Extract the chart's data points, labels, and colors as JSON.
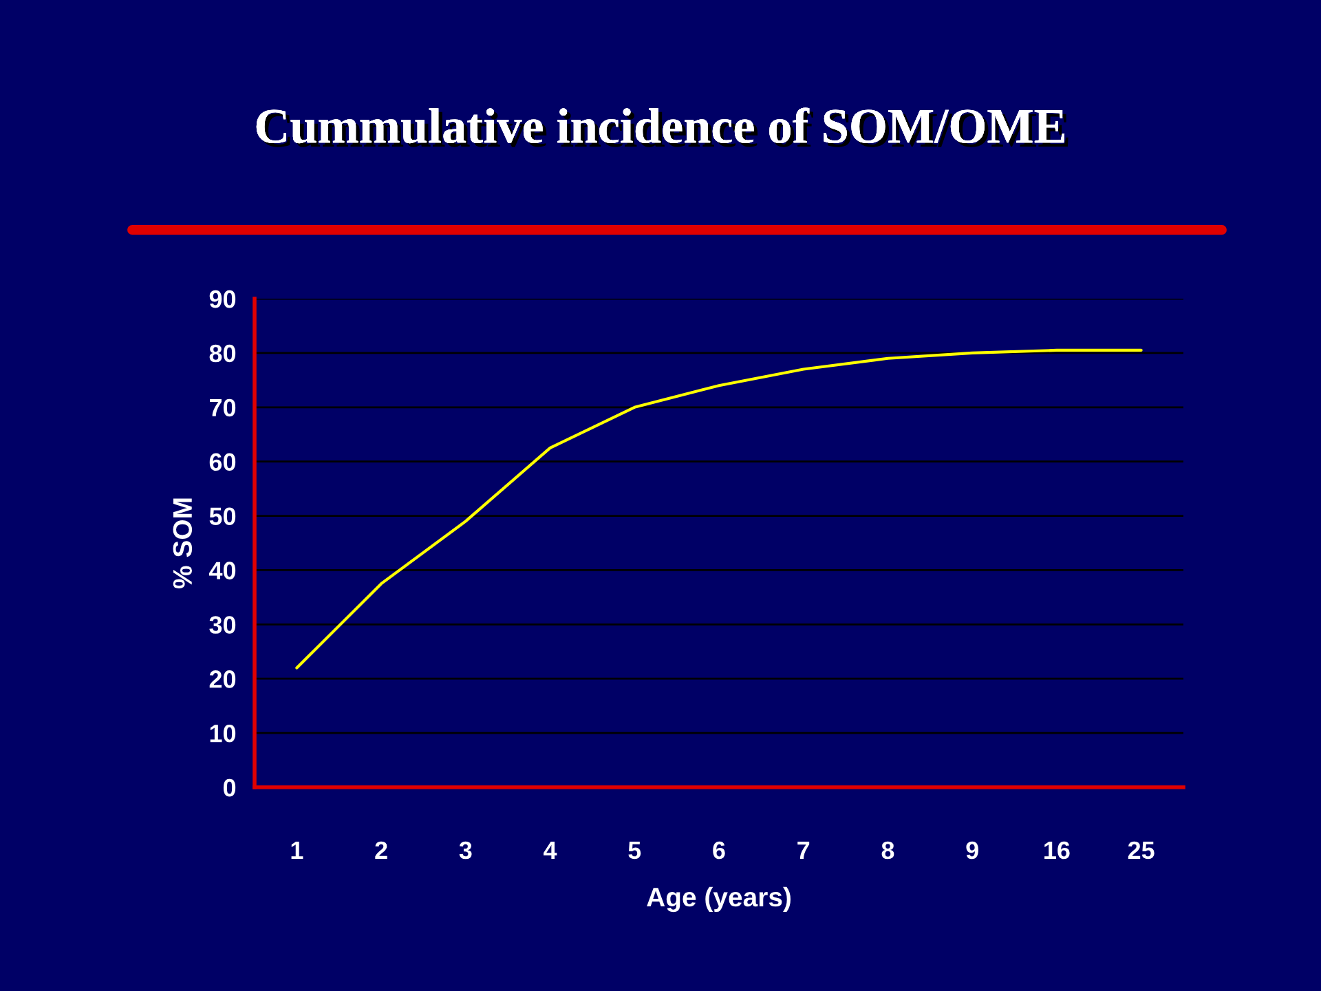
{
  "chart_data": {
    "type": "line",
    "title": "Cummulative incidence of SOM/OME",
    "xlabel": "Age (years)",
    "ylabel": "% SOM",
    "categories": [
      "1",
      "2",
      "3",
      "4",
      "5",
      "6",
      "7",
      "8",
      "9",
      "16",
      "25"
    ],
    "series": [
      {
        "color": "#ffff00",
        "values": [
          22,
          37.5,
          49,
          62.5,
          70,
          74,
          77,
          79,
          80,
          80.5,
          80.5
        ]
      }
    ],
    "ylim": [
      0,
      90
    ],
    "yticks": [
      0,
      10,
      20,
      30,
      40,
      50,
      60,
      70,
      80,
      90
    ],
    "grid": "y",
    "marker": "none",
    "line_style": "solid"
  }
}
